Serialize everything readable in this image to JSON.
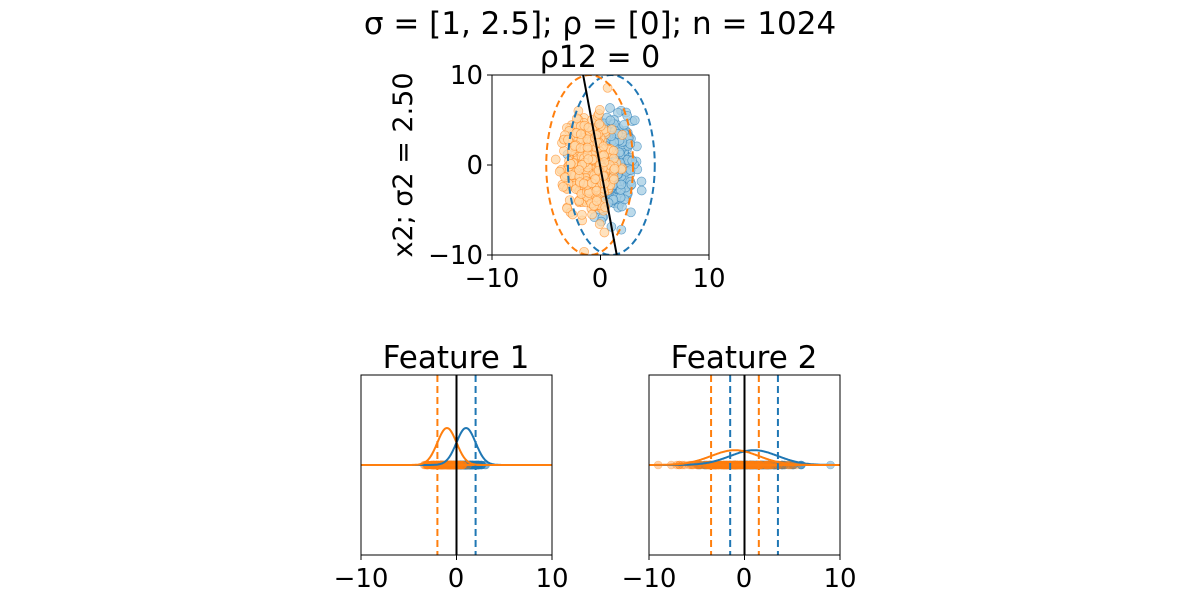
{
  "figure": {
    "suptitle": "σ =  [1, 2.5]; ρ =  [0]; n =  1024"
  },
  "colors": {
    "class_a": "#1f77b4",
    "class_a_fill": "#a6cee3",
    "class_b": "#ff7f0e",
    "class_b_fill": "#ffd8a8",
    "boundary": "#000000"
  },
  "chart_data": [
    {
      "type": "scatter",
      "title": "ρ12 = 0",
      "ylabel": "x2;  σ2 = 2.50",
      "xlim": [
        -10,
        10
      ],
      "ylim": [
        -10,
        10
      ],
      "xticks": [
        "−10",
        "0",
        "10"
      ],
      "yticks": [
        "10",
        "0",
        "−10"
      ],
      "series": [
        {
          "color": "class_a",
          "mean": [
            1.0,
            0.0
          ],
          "sd": [
            1.0,
            2.5
          ],
          "ellipse_radii": [
            4.0,
            10.0
          ]
        },
        {
          "color": "class_b",
          "mean": [
            -1.0,
            0.0
          ],
          "sd": [
            1.0,
            2.5
          ],
          "ellipse_radii": [
            4.0,
            10.0
          ]
        }
      ],
      "boundary_line": [
        [
          -1.6,
          10
        ],
        [
          1.5,
          -10
        ]
      ]
    },
    {
      "type": "line",
      "title": "Feature 1",
      "xlim": [
        -10,
        10
      ],
      "xticks": [
        "−10",
        "0",
        "10"
      ],
      "series": [
        {
          "color": "class_a",
          "mean": 1.0,
          "sd": 1.0,
          "dashed_at": 2.0
        },
        {
          "color": "class_b",
          "mean": -1.0,
          "sd": 1.0,
          "dashed_at": -2.0
        }
      ],
      "boundary_x": 0
    },
    {
      "type": "line",
      "title": "Feature 2",
      "xlim": [
        -10,
        10
      ],
      "xticks": [
        "−10",
        "0",
        "10"
      ],
      "series": [
        {
          "color": "class_a",
          "mean": 1.0,
          "sd": 2.5,
          "dashed_at": [
            -1.5,
            3.5
          ]
        },
        {
          "color": "class_b",
          "mean": -1.0,
          "sd": 2.5,
          "dashed_at": [
            -3.5,
            1.5
          ]
        }
      ],
      "boundary_x": 0
    }
  ]
}
